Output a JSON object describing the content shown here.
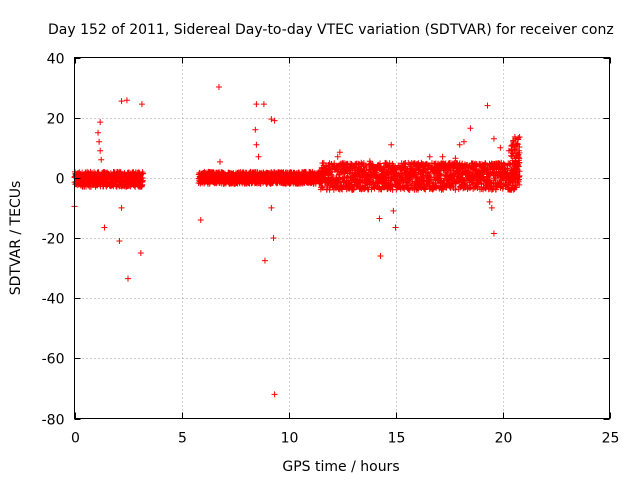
{
  "chart_data": {
    "type": "scatter",
    "title": "Day 152 of 2011, Sidereal Day-to-day VTEC variation (SDTVAR) for receiver conz",
    "xlabel": "GPS time / hours",
    "ylabel": "SDTVAR / TECUs",
    "xlim": [
      0,
      25
    ],
    "ylim": [
      -80,
      40
    ],
    "xticks": [
      0,
      5,
      10,
      15,
      20,
      25
    ],
    "yticks": [
      -80,
      -60,
      -40,
      -20,
      0,
      20,
      40
    ],
    "grid": true,
    "marker": "+",
    "series_color": "#ff0000",
    "dense_bands": [
      {
        "x_start": 0.0,
        "x_end": 3.2,
        "y_low": -3,
        "y_high": 2
      },
      {
        "x_start": 5.8,
        "x_end": 11.5,
        "y_low": -2,
        "y_high": 2
      },
      {
        "x_start": 11.5,
        "x_end": 20.8,
        "y_low": -4,
        "y_high": 5
      },
      {
        "x_start": 20.4,
        "x_end": 20.8,
        "y_low": 0,
        "y_high": 14
      }
    ],
    "outliers": [
      [
        0.0,
        -9.5
      ],
      [
        1.2,
        18.5
      ],
      [
        1.1,
        15
      ],
      [
        1.15,
        12
      ],
      [
        1.2,
        9
      ],
      [
        1.25,
        6
      ],
      [
        1.4,
        -16.5
      ],
      [
        2.2,
        25.5
      ],
      [
        2.45,
        25.8
      ],
      [
        2.1,
        -21
      ],
      [
        2.2,
        -10
      ],
      [
        2.5,
        -33.5
      ],
      [
        3.15,
        24.5
      ],
      [
        3.1,
        -25
      ],
      [
        5.9,
        -14
      ],
      [
        6.75,
        30.2
      ],
      [
        6.8,
        5.3
      ],
      [
        8.5,
        24.5
      ],
      [
        8.85,
        24.5
      ],
      [
        9.2,
        19.5
      ],
      [
        9.35,
        19
      ],
      [
        8.9,
        -27.5
      ],
      [
        9.3,
        -20
      ],
      [
        9.35,
        -72
      ],
      [
        9.2,
        -10
      ],
      [
        8.45,
        16
      ],
      [
        8.5,
        11
      ],
      [
        8.6,
        7
      ],
      [
        14.25,
        -13.5
      ],
      [
        14.3,
        -26
      ],
      [
        15.0,
        -16.5
      ],
      [
        14.9,
        -11
      ],
      [
        14.8,
        11
      ],
      [
        16.6,
        7
      ],
      [
        18.2,
        12
      ],
      [
        18.5,
        16.5
      ],
      [
        19.3,
        24
      ],
      [
        19.6,
        13
      ],
      [
        19.6,
        -18.5
      ],
      [
        19.5,
        -10
      ],
      [
        19.4,
        -8
      ],
      [
        20.3,
        9
      ],
      [
        20.5,
        12
      ],
      [
        12.3,
        7
      ],
      [
        12.4,
        8.5
      ],
      [
        13.4,
        5
      ],
      [
        13.8,
        5.5
      ],
      [
        17.2,
        7
      ],
      [
        17.8,
        6.5
      ],
      [
        18.0,
        11
      ],
      [
        19.9,
        10
      ]
    ]
  }
}
